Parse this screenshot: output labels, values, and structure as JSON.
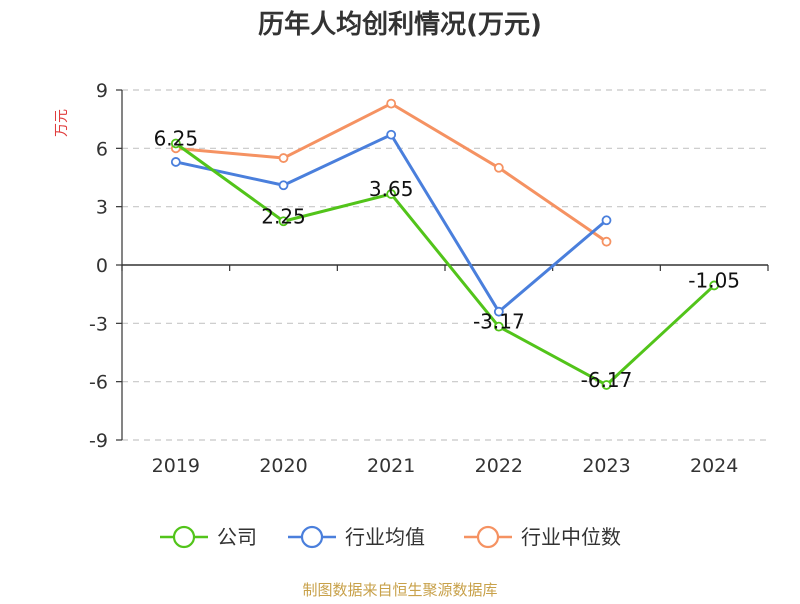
{
  "chart_data": {
    "type": "line",
    "title": "历年人均创利情况(万元)",
    "ylabel": "万元",
    "xlabel": "",
    "categories": [
      "2019",
      "2020",
      "2021",
      "2022",
      "2023",
      "2024"
    ],
    "ylim": [
      -9,
      9
    ],
    "yticks": [
      9,
      6,
      3,
      0,
      -3,
      -6,
      -9
    ],
    "grid": true,
    "legend_position": "bottom",
    "series": [
      {
        "name": "公司",
        "color": "#52c41a",
        "values": [
          6.25,
          2.25,
          3.65,
          -3.17,
          -6.17,
          -1.05
        ],
        "labels": [
          "6.25",
          "2.25",
          "3.65",
          "-3.17",
          "-6.17",
          "-1.05"
        ]
      },
      {
        "name": "行业均值",
        "color": "#4a7fdc",
        "values": [
          5.3,
          4.1,
          6.7,
          -2.4,
          2.3,
          null
        ]
      },
      {
        "name": "行业中位数",
        "color": "#f59262",
        "values": [
          6.0,
          5.5,
          8.3,
          5.0,
          1.2,
          null
        ]
      }
    ]
  },
  "source": "制图数据来自恒生聚源数据库"
}
